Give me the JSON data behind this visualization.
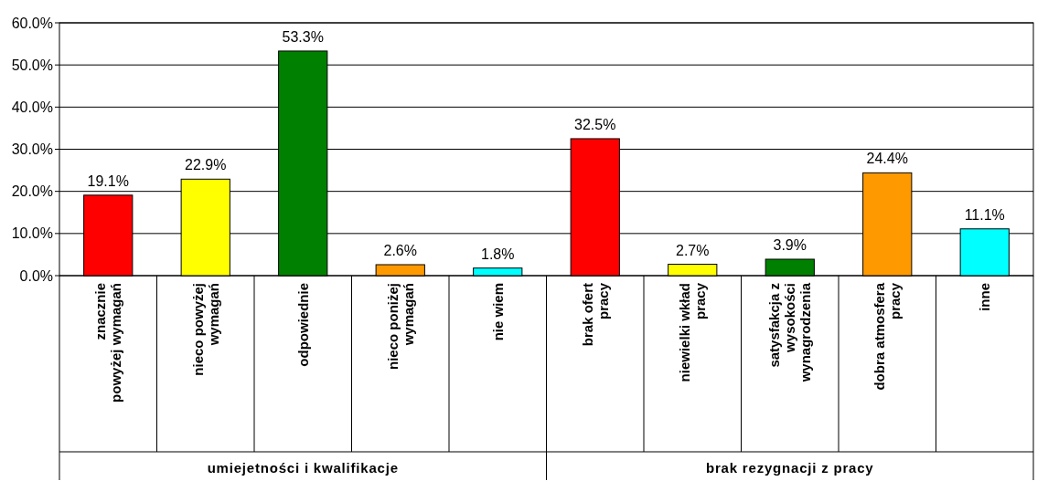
{
  "chart_data": {
    "type": "bar",
    "categories": [
      "znacznie powyżej wymagań",
      "nieco powyżej wymagań",
      "odpowiednie",
      "nieco poniżej wymagań",
      "nie wiem",
      "brak ofert pracy",
      "niewielki wkład pracy",
      "satysfakcja z wysokości wynagrodzenia",
      "dobra atmosfera pracy",
      "inne"
    ],
    "values": [
      19.1,
      22.9,
      53.3,
      2.6,
      1.8,
      32.5,
      2.7,
      3.9,
      24.4,
      11.1
    ],
    "colors": [
      "#ff0000",
      "#ffff00",
      "#008000",
      "#ff9900",
      "#00ffff",
      "#ff0000",
      "#ffff00",
      "#008000",
      "#ff9900",
      "#00ffff"
    ],
    "value_labels": [
      "19.1%",
      "22.9%",
      "53.3%",
      "2.6%",
      "1.8%",
      "32.5%",
      "2.7%",
      "3.9%",
      "24.4%",
      "11.1%"
    ],
    "ylim": [
      0,
      60
    ],
    "yticks": [
      {
        "value": 0,
        "label": "0.0%"
      },
      {
        "value": 10,
        "label": "10.0%"
      },
      {
        "value": 20,
        "label": "20.0%"
      },
      {
        "value": 30,
        "label": "30.0%"
      },
      {
        "value": 40,
        "label": "40.0%"
      },
      {
        "value": 50,
        "label": "50.0%"
      },
      {
        "value": 60,
        "label": "60.0%"
      }
    ],
    "grid": "y",
    "annotations": [
      "umiejetności i kwalifikacje",
      "brak rezygnacji z pracy"
    ]
  }
}
